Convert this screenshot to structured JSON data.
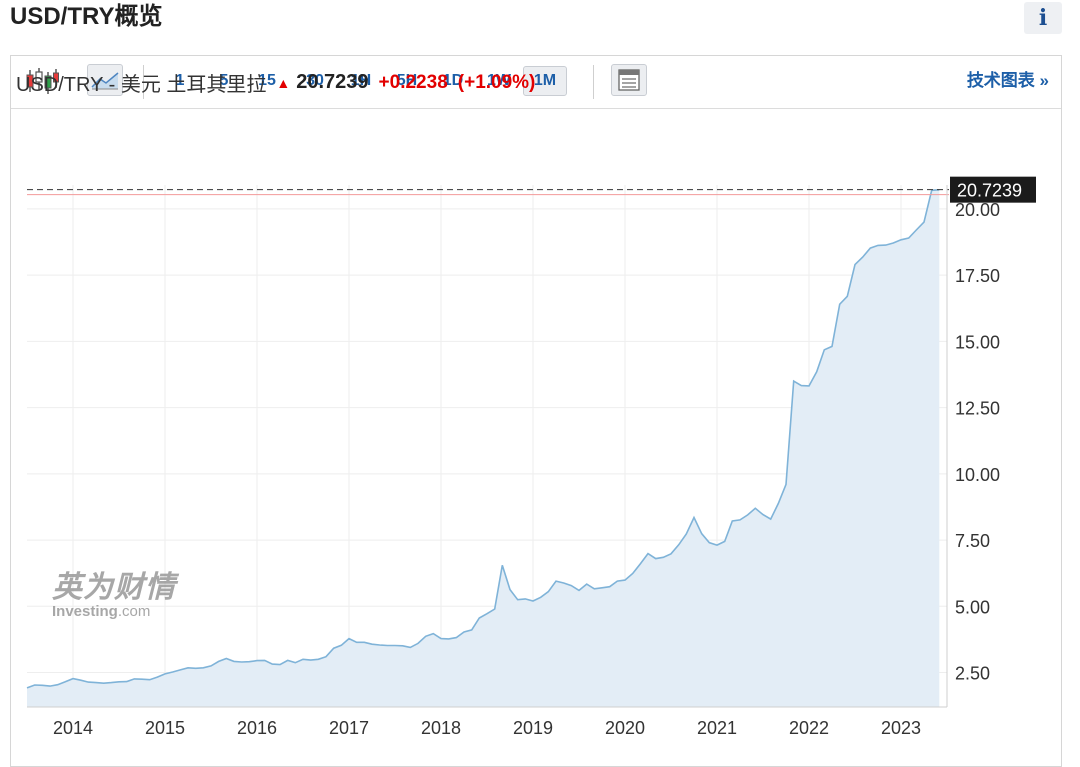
{
  "page": {
    "title": "USD/TRY概览"
  },
  "info_button": {
    "label": "i"
  },
  "toolbar": {
    "candlestick_icon": "candlestick-icon",
    "area_icon": "area-chart-icon",
    "intervals": [
      "1",
      "5",
      "15",
      "30",
      "1H",
      "5H",
      "1D",
      "1W",
      "1M"
    ],
    "active_interval": "1M",
    "table_icon": "table-icon",
    "tech_chart_label": "技术图表 »"
  },
  "quote": {
    "name": "USD/TRY - 美元 土耳其里拉",
    "arrow": "▲",
    "price": "20.7239",
    "change": "+0.2238",
    "change_pct": "(+1.09%)"
  },
  "watermark": {
    "cn": "英为财情",
    "en": "Investing",
    "en_suffix": ".com"
  },
  "colors": {
    "accent_blue": "#1d5fa8",
    "up_red": "#e20000",
    "line": "#7fb3d8",
    "area_fill": "#e3edf6",
    "price_tag_bg": "#1b1b1b"
  },
  "chart_data": {
    "type": "area",
    "series": [
      {
        "x": [
          "2013-07",
          "2013-08",
          "2013-09",
          "2013-10",
          "2013-11",
          "2013-12",
          "2014-01",
          "2014-02",
          "2014-03",
          "2014-04",
          "2014-05",
          "2014-06",
          "2014-07",
          "2014-08",
          "2014-09",
          "2014-10",
          "2014-11",
          "2014-12",
          "2015-01",
          "2015-02",
          "2015-03",
          "2015-04",
          "2015-05",
          "2015-06",
          "2015-07",
          "2015-08",
          "2015-09",
          "2015-10",
          "2015-11",
          "2015-12",
          "2016-01",
          "2016-02",
          "2016-03",
          "2016-04",
          "2016-05",
          "2016-06",
          "2016-07",
          "2016-08",
          "2016-09",
          "2016-10",
          "2016-11",
          "2016-12",
          "2017-01",
          "2017-02",
          "2017-03",
          "2017-04",
          "2017-05",
          "2017-06",
          "2017-07",
          "2017-08",
          "2017-09",
          "2017-10",
          "2017-11",
          "2017-12",
          "2018-01",
          "2018-02",
          "2018-03",
          "2018-04",
          "2018-05",
          "2018-06",
          "2018-07",
          "2018-08",
          "2018-09",
          "2018-10",
          "2018-11",
          "2018-12",
          "2019-01",
          "2019-02",
          "2019-03",
          "2019-04",
          "2019-05",
          "2019-06",
          "2019-07",
          "2019-08",
          "2019-09",
          "2019-10",
          "2019-11",
          "2019-12",
          "2020-01",
          "2020-02",
          "2020-03",
          "2020-04",
          "2020-05",
          "2020-06",
          "2020-07",
          "2020-08",
          "2020-09",
          "2020-10",
          "2020-11",
          "2020-12",
          "2021-01",
          "2021-02",
          "2021-03",
          "2021-04",
          "2021-05",
          "2021-06",
          "2021-07",
          "2021-08",
          "2021-09",
          "2021-10",
          "2021-11",
          "2021-12",
          "2022-01",
          "2022-02",
          "2022-03",
          "2022-04",
          "2022-05",
          "2022-06",
          "2022-07",
          "2022-08",
          "2022-09",
          "2022-10",
          "2022-11",
          "2022-12",
          "2023-01",
          "2023-02",
          "2023-03",
          "2023-04",
          "2023-05",
          "2023-06"
        ],
        "y": [
          1.92,
          2.03,
          2.02,
          1.99,
          2.04,
          2.15,
          2.27,
          2.21,
          2.14,
          2.12,
          2.1,
          2.12,
          2.15,
          2.16,
          2.26,
          2.25,
          2.23,
          2.33,
          2.45,
          2.52,
          2.6,
          2.68,
          2.66,
          2.68,
          2.75,
          2.92,
          3.03,
          2.92,
          2.9,
          2.91,
          2.95,
          2.96,
          2.82,
          2.8,
          2.96,
          2.87,
          3.0,
          2.97,
          3.0,
          3.1,
          3.42,
          3.53,
          3.78,
          3.64,
          3.64,
          3.57,
          3.54,
          3.52,
          3.52,
          3.51,
          3.45,
          3.6,
          3.87,
          3.97,
          3.78,
          3.77,
          3.82,
          4.03,
          4.11,
          4.56,
          4.72,
          4.9,
          6.55,
          5.63,
          5.25,
          5.28,
          5.2,
          5.34,
          5.55,
          5.95,
          5.88,
          5.78,
          5.6,
          5.84,
          5.66,
          5.7,
          5.74,
          5.95,
          5.99,
          6.24,
          6.6,
          6.99,
          6.8,
          6.85,
          6.98,
          7.32,
          7.73,
          8.35,
          7.74,
          7.4,
          7.31,
          7.45,
          8.22,
          8.26,
          8.45,
          8.7,
          8.46,
          8.29,
          8.88,
          9.6,
          13.5,
          13.33,
          13.32,
          13.85,
          14.68,
          14.81,
          16.4,
          16.7,
          17.9,
          18.18,
          18.52,
          18.62,
          18.63,
          18.71,
          18.83,
          18.9,
          19.2,
          19.5,
          20.7,
          20.72
        ]
      }
    ],
    "x_ticks": [
      "2014",
      "2015",
      "2016",
      "2017",
      "2018",
      "2019",
      "2020",
      "2021",
      "2022",
      "2023"
    ],
    "y_ticks": [
      "2.50",
      "5.00",
      "7.50",
      "10.00",
      "12.50",
      "15.00",
      "17.50",
      "20.00"
    ],
    "ylim": [
      1.2,
      20.9
    ],
    "last_price": 20.7239,
    "last_price_label": "20.7239",
    "grid": true
  }
}
